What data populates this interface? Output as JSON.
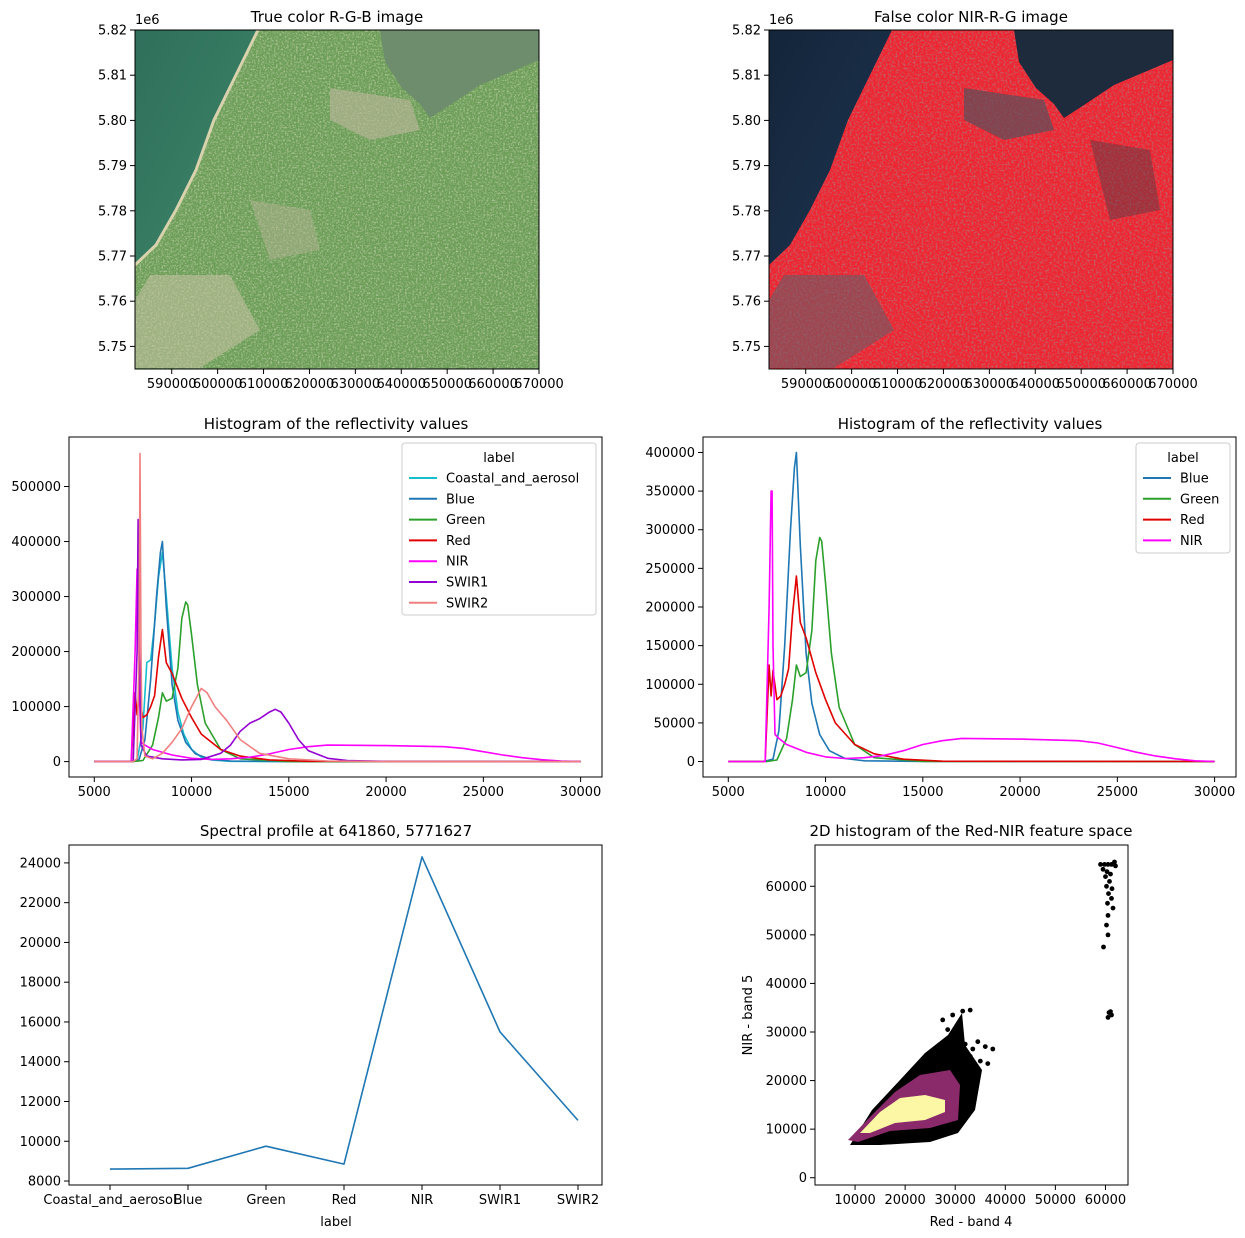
{
  "chart_data": [
    {
      "type": "image",
      "title": "True color R-G-B image",
      "x_ticks": [
        "590000",
        "600000",
        "610000",
        "620000",
        "630000",
        "640000",
        "650000",
        "660000",
        "670000"
      ],
      "y_ticks": [
        "5.75",
        "5.76",
        "5.77",
        "5.78",
        "5.79",
        "5.80",
        "5.81",
        "5.82"
      ],
      "y_offset_label": "1e6",
      "xlim": [
        582000,
        670000
      ],
      "ylim": [
        5745000,
        5820000
      ],
      "colors": {
        "sea": "#2c6b55",
        "land": "#6c9e58",
        "urban": "#c9c2a4",
        "water": "#6e8d6c"
      }
    },
    {
      "type": "image",
      "title": "False color NIR-R-G image",
      "x_ticks": [
        "590000",
        "600000",
        "610000",
        "620000",
        "630000",
        "640000",
        "650000",
        "660000",
        "670000"
      ],
      "y_ticks": [
        "5.75",
        "5.76",
        "5.77",
        "5.78",
        "5.79",
        "5.80",
        "5.81",
        "5.82"
      ],
      "y_offset_label": "1e6",
      "xlim": [
        582000,
        670000
      ],
      "ylim": [
        5745000,
        5820000
      ],
      "colors": {
        "sea": "#172a3e",
        "land": "#ee2530",
        "urban": "#5a4f5a",
        "water": "#1d2b3c"
      }
    },
    {
      "type": "line",
      "title": "Histogram of the reflectivity values",
      "legend_title": "label",
      "legend_position": "top-right",
      "xlim": [
        3700,
        31100
      ],
      "ylim": [
        -28000,
        590000
      ],
      "x_ticks": [
        5000,
        10000,
        15000,
        20000,
        25000,
        30000
      ],
      "y_ticks": [
        0,
        100000,
        200000,
        300000,
        400000,
        500000
      ],
      "series": [
        {
          "name": "Coastal_and_aerosol",
          "color": "#17becf",
          "x": [
            5000,
            6800,
            7200,
            7500,
            7700,
            7900,
            8100,
            8300,
            8500,
            8700,
            9000,
            9300,
            9600,
            10000,
            10500,
            11000,
            12000,
            15000,
            30000
          ],
          "y": [
            0,
            0,
            2000,
            60000,
            180000,
            185000,
            250000,
            335000,
            380000,
            300000,
            170000,
            90000,
            50000,
            22000,
            8000,
            3000,
            500,
            0,
            0
          ]
        },
        {
          "name": "Blue",
          "color": "#1f77b4",
          "x": [
            5000,
            6800,
            7300,
            7600,
            7900,
            8200,
            8400,
            8500,
            8700,
            9000,
            9300,
            9700,
            10200,
            11000,
            12000,
            15000,
            30000
          ],
          "y": [
            0,
            0,
            3000,
            40000,
            150000,
            300000,
            380000,
            400000,
            280000,
            140000,
            75000,
            35000,
            14000,
            4000,
            1000,
            0,
            0
          ]
        },
        {
          "name": "Green",
          "color": "#2ca02c",
          "x": [
            5000,
            7000,
            7500,
            8000,
            8300,
            8500,
            8700,
            9000,
            9300,
            9500,
            9700,
            9800,
            10000,
            10300,
            10700,
            11500,
            12500,
            15000,
            30000
          ],
          "y": [
            0,
            0,
            2000,
            30000,
            80000,
            125000,
            110000,
            115000,
            170000,
            260000,
            290000,
            285000,
            230000,
            140000,
            70000,
            22000,
            5000,
            0,
            0
          ]
        },
        {
          "name": "Red",
          "color": "#e00000",
          "x": [
            5000,
            6900,
            7100,
            7200,
            7300,
            7500,
            7700,
            7900,
            8100,
            8300,
            8500,
            8700,
            9000,
            9500,
            10000,
            10500,
            11500,
            12500,
            14000,
            16000,
            30000
          ],
          "y": [
            0,
            0,
            125000,
            85000,
            118000,
            80000,
            85000,
            100000,
            120000,
            190000,
            240000,
            180000,
            160000,
            115000,
            80000,
            50000,
            22000,
            10000,
            3000,
            500,
            0
          ]
        },
        {
          "name": "NIR",
          "color": "#ff00ff",
          "x": [
            5000,
            6900,
            7100,
            7200,
            7250,
            7300,
            7400,
            7600,
            8000,
            9000,
            10000,
            11000,
            12000,
            13000,
            14000,
            15000,
            16000,
            17000,
            20000,
            23000,
            24000,
            25000,
            26000,
            27000,
            28000,
            29000,
            30000
          ],
          "y": [
            0,
            0,
            200000,
            350000,
            350000,
            150000,
            35000,
            30000,
            22000,
            12000,
            6000,
            4000,
            5000,
            8000,
            14000,
            22000,
            27000,
            30000,
            29000,
            27000,
            24000,
            18000,
            12000,
            7000,
            3500,
            1000,
            0
          ]
        },
        {
          "name": "SWIR1",
          "color": "#9400d3",
          "x": [
            5000,
            7000,
            7200,
            7250,
            7300,
            7400,
            7700,
            8500,
            9500,
            10500,
            11500,
            12000,
            12500,
            13000,
            13500,
            14000,
            14300,
            14600,
            15000,
            15500,
            16000,
            17000,
            18000,
            20000,
            30000
          ],
          "y": [
            0,
            0,
            200000,
            440000,
            250000,
            30000,
            10000,
            5000,
            3000,
            4000,
            15000,
            30000,
            55000,
            70000,
            78000,
            90000,
            95000,
            90000,
            70000,
            40000,
            20000,
            6000,
            2000,
            300,
            0
          ]
        },
        {
          "name": "SWIR2",
          "color": "#f08080",
          "x": [
            5000,
            7000,
            7200,
            7300,
            7350,
            7400,
            7450,
            7600,
            8000,
            8500,
            9000,
            9500,
            10000,
            10500,
            10800,
            11200,
            11800,
            12500,
            13500,
            15000,
            17000,
            20000,
            30000
          ],
          "y": [
            0,
            0,
            5000,
            200000,
            560000,
            200000,
            60000,
            10000,
            5000,
            15000,
            35000,
            60000,
            100000,
            133000,
            125000,
            100000,
            75000,
            40000,
            15000,
            5000,
            1000,
            0,
            0
          ]
        }
      ]
    },
    {
      "type": "line",
      "title": "Histogram of the reflectivity values",
      "legend_title": "label",
      "legend_position": "top-right",
      "xlim": [
        3700,
        31100
      ],
      "ylim": [
        -20000,
        420000
      ],
      "x_ticks": [
        5000,
        10000,
        15000,
        20000,
        25000,
        30000
      ],
      "y_ticks": [
        0,
        50000,
        100000,
        150000,
        200000,
        250000,
        300000,
        350000,
        400000
      ],
      "series": [
        {
          "name": "Blue",
          "color": "#1f77b4",
          "x": [
            5000,
            6800,
            7300,
            7600,
            7900,
            8200,
            8400,
            8500,
            8700,
            9000,
            9300,
            9700,
            10200,
            11000,
            12000,
            15000,
            30000
          ],
          "y": [
            0,
            0,
            3000,
            40000,
            150000,
            300000,
            380000,
            400000,
            280000,
            140000,
            75000,
            35000,
            14000,
            4000,
            1000,
            0,
            0
          ]
        },
        {
          "name": "Green",
          "color": "#2ca02c",
          "x": [
            5000,
            7000,
            7500,
            8000,
            8300,
            8500,
            8700,
            9000,
            9300,
            9500,
            9700,
            9800,
            10000,
            10300,
            10700,
            11500,
            12500,
            15000,
            30000
          ],
          "y": [
            0,
            0,
            2000,
            30000,
            80000,
            125000,
            110000,
            115000,
            170000,
            260000,
            290000,
            285000,
            230000,
            140000,
            70000,
            22000,
            5000,
            0,
            0
          ]
        },
        {
          "name": "Red",
          "color": "#e00000",
          "x": [
            5000,
            6900,
            7100,
            7200,
            7300,
            7500,
            7700,
            7900,
            8100,
            8300,
            8500,
            8700,
            9000,
            9500,
            10000,
            10500,
            11500,
            12500,
            14000,
            16000,
            30000
          ],
          "y": [
            0,
            0,
            125000,
            85000,
            118000,
            80000,
            85000,
            100000,
            120000,
            190000,
            240000,
            180000,
            160000,
            115000,
            80000,
            50000,
            22000,
            10000,
            3000,
            500,
            0
          ]
        },
        {
          "name": "NIR",
          "color": "#ff00ff",
          "x": [
            5000,
            6900,
            7100,
            7200,
            7250,
            7300,
            7400,
            7600,
            8000,
            9000,
            10000,
            11000,
            12000,
            13000,
            14000,
            15000,
            16000,
            17000,
            20000,
            23000,
            24000,
            25000,
            26000,
            27000,
            28000,
            29000,
            30000
          ],
          "y": [
            0,
            0,
            200000,
            350000,
            350000,
            150000,
            35000,
            30000,
            22000,
            12000,
            6000,
            4000,
            5000,
            8000,
            14000,
            22000,
            27000,
            30000,
            29000,
            27000,
            24000,
            18000,
            12000,
            7000,
            3500,
            1000,
            0
          ]
        }
      ]
    },
    {
      "type": "line",
      "title": "Spectral profile at 641860, 5771627",
      "xlabel": "label",
      "categories": [
        "Coastal_and_aerosol",
        "Blue",
        "Green",
        "Red",
        "NIR",
        "SWIR1",
        "SWIR2"
      ],
      "values": [
        8600,
        8640,
        9750,
        8850,
        24300,
        15500,
        11050
      ],
      "ylim": [
        7800,
        24900
      ],
      "y_ticks": [
        8000,
        10000,
        12000,
        14000,
        16000,
        18000,
        20000,
        22000,
        24000
      ],
      "color": "#1f77b4"
    },
    {
      "type": "heatmap",
      "title": "2D histogram of the Red-NIR feature space",
      "xlabel": "Red - band 4",
      "ylabel": "NIR - band 5",
      "xlim": [
        2000,
        64500
      ],
      "ylim": [
        -1500,
        68500
      ],
      "x_ticks": [
        10000,
        20000,
        30000,
        40000,
        50000,
        60000
      ],
      "y_ticks": [
        0,
        10000,
        20000,
        30000,
        40000,
        50000,
        60000
      ],
      "colors": {
        "low": "#000000",
        "mid": "#8a2a6b",
        "high": "#fcf7a5"
      }
    }
  ]
}
